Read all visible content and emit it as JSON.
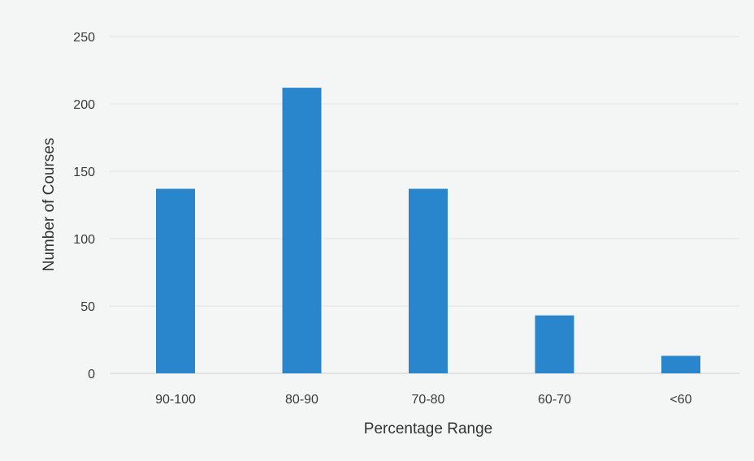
{
  "chart_data": {
    "type": "bar",
    "title": "",
    "xlabel": "Percentage Range",
    "ylabel": "Number of Courses",
    "categories": [
      "90-100",
      "80-90",
      "70-80",
      "60-70",
      "<60"
    ],
    "values": [
      137,
      212,
      137,
      43,
      13
    ],
    "ylim": [
      0,
      250
    ],
    "yticks": [
      "0",
      "50",
      "100",
      "150",
      "200",
      "250"
    ],
    "grid": true,
    "legend": "none",
    "bar_color": "#2a86cc"
  }
}
